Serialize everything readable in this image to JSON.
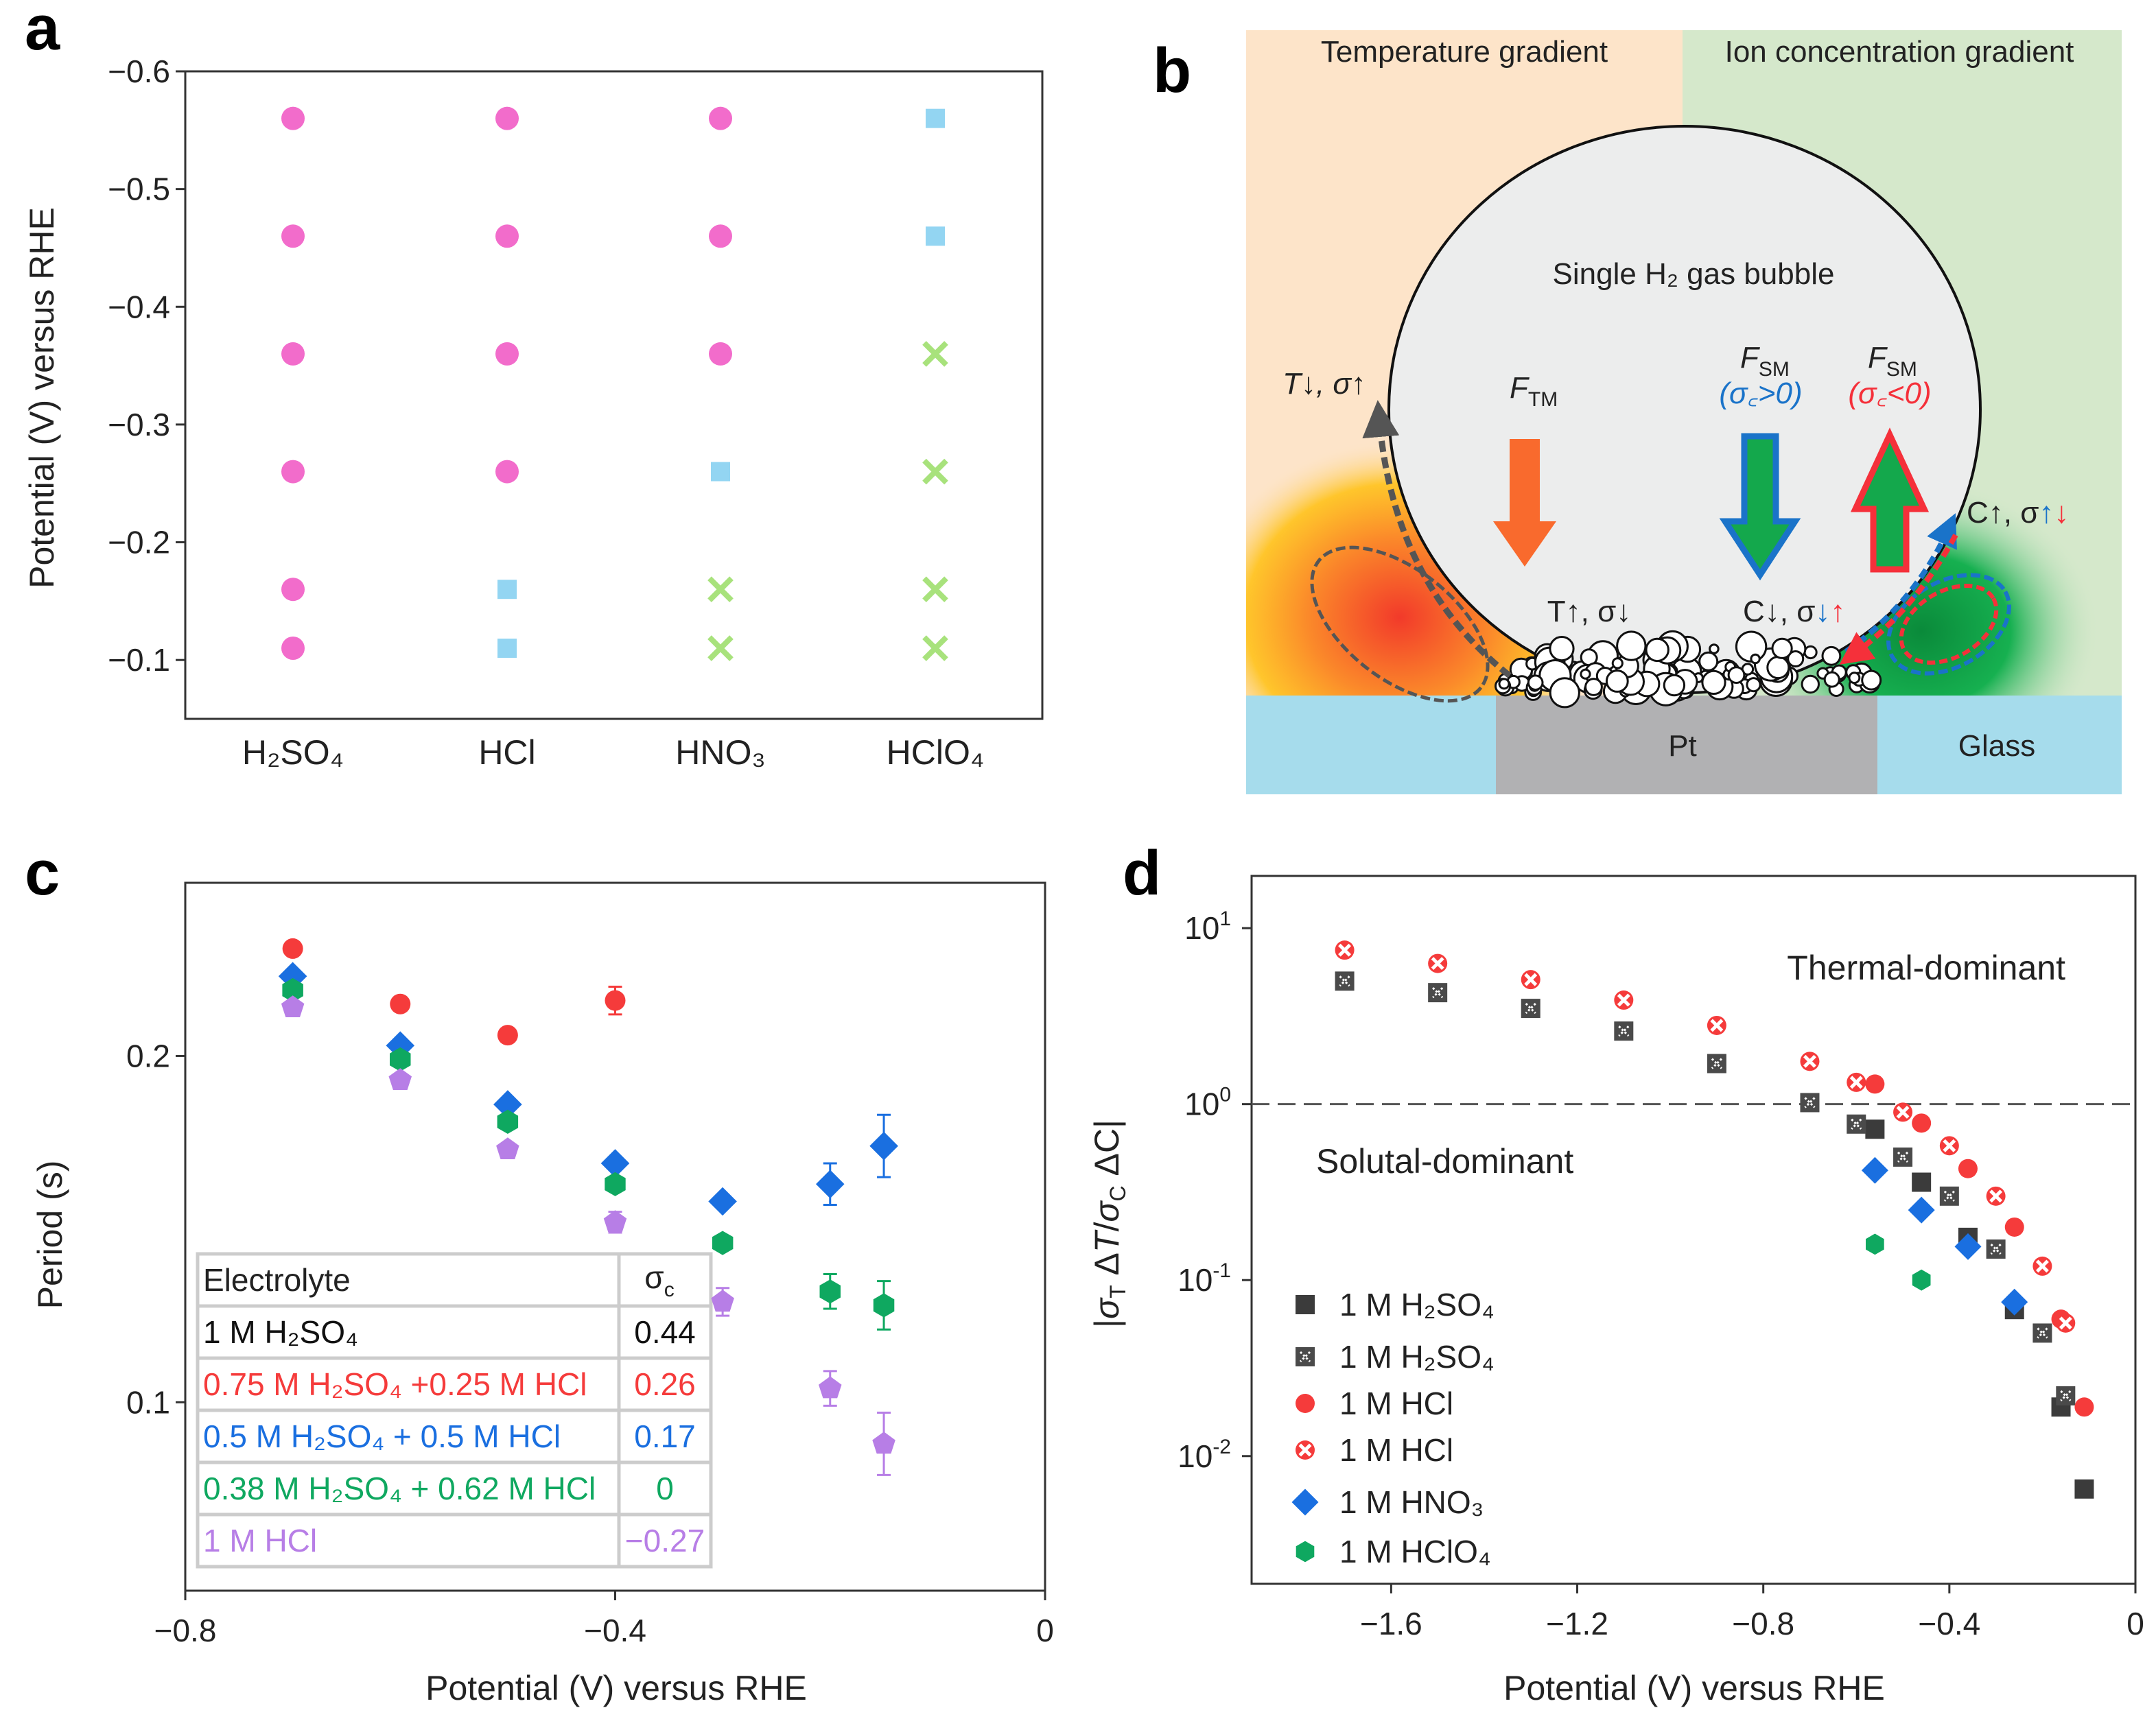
{
  "panel_labels": {
    "a": "a",
    "b": "b",
    "c": "c",
    "d": "d"
  },
  "diagram_b": {
    "temperature_gradient": "Temperature gradient",
    "ion_gradient": "Ion concentration gradient",
    "bubble_label": "Single H₂ gas bubble",
    "t_down_sigma_up": "T↓, σ↑",
    "f_tm": "F",
    "f_tm_sub": "TM",
    "f_sm_pos": "F",
    "f_sm_pos_sub": "SM",
    "sigma_c_pos": "(σ꜀>0)",
    "f_sm_neg": "F",
    "f_sm_neg_sub": "SM",
    "sigma_c_neg": "(σ꜀<0)",
    "t_up_sigma_down": "T↑, σ↓",
    "c_down": "C↓, σ",
    "c_down_b": "↓",
    "c_down_r": "↑",
    "c_up": "C↑, σ",
    "c_up_b": "↑",
    "c_up_r": "↓",
    "pt": "Pt",
    "glass": "Glass",
    "colors": {
      "temp_bg": "#fde4c9",
      "ion_bg": "#d5e8cb",
      "substrate": "#a6dcec",
      "pt": "#b1b1b3",
      "orange_arrow": "#f96a2d",
      "blue": "#1a73c9",
      "green": "#14a84c",
      "red": "#f5303a"
    }
  },
  "chart_data": [
    {
      "id": "a",
      "type": "scatter",
      "title": "",
      "xlabel": "",
      "ylabel": "Potential (V) versus RHE",
      "categories": [
        "H₂SO₄",
        "HCl",
        "HNO₃",
        "HClO₄"
      ],
      "ylim": [
        -0.6,
        -0.05
      ],
      "y_inverted": true,
      "yticks": [
        "−0.6",
        "−0.5",
        "−0.4",
        "−0.3",
        "−0.2",
        "−0.1"
      ],
      "ytick_values": [
        -0.6,
        -0.5,
        -0.4,
        -0.3,
        -0.2,
        -0.1
      ],
      "series": [
        {
          "marker": "circle",
          "color": "#f26ccb",
          "points": [
            {
              "category": 0,
              "y": -0.56
            },
            {
              "category": 0,
              "y": -0.46
            },
            {
              "category": 0,
              "y": -0.36
            },
            {
              "category": 0,
              "y": -0.26
            },
            {
              "category": 0,
              "y": -0.16
            },
            {
              "category": 0,
              "y": -0.11
            },
            {
              "category": 1,
              "y": -0.56
            },
            {
              "category": 1,
              "y": -0.46
            },
            {
              "category": 1,
              "y": -0.36
            },
            {
              "category": 1,
              "y": -0.26
            },
            {
              "category": 2,
              "y": -0.56
            },
            {
              "category": 2,
              "y": -0.46
            },
            {
              "category": 2,
              "y": -0.36
            }
          ]
        },
        {
          "marker": "square",
          "color": "#93d5f2",
          "points": [
            {
              "category": 1,
              "y": -0.16
            },
            {
              "category": 1,
              "y": -0.11
            },
            {
              "category": 2,
              "y": -0.26
            },
            {
              "category": 3,
              "y": -0.56
            },
            {
              "category": 3,
              "y": -0.46
            }
          ]
        },
        {
          "marker": "cross",
          "color": "#a8e27c",
          "points": [
            {
              "category": 2,
              "y": -0.16
            },
            {
              "category": 2,
              "y": -0.11
            },
            {
              "category": 3,
              "y": -0.36
            },
            {
              "category": 3,
              "y": -0.26
            },
            {
              "category": 3,
              "y": -0.16
            },
            {
              "category": 3,
              "y": -0.11
            }
          ]
        }
      ]
    },
    {
      "id": "c",
      "type": "scatter",
      "title": "",
      "xlabel": "Potential (V) versus RHE",
      "ylabel": "Period (s)",
      "xlim": [
        -0.8,
        0
      ],
      "ylim": [
        0.0456,
        0.25
      ],
      "xticks": [
        "−0.8",
        "−0.4",
        "0"
      ],
      "xtick_values": [
        -0.8,
        -0.4,
        0
      ],
      "yticks": [
        "0.2",
        "0.1"
      ],
      "ytick_values": [
        0.2,
        0.1
      ],
      "series": [
        {
          "name": "1 M H₂SO₄",
          "sigma_c": "0.44",
          "color": "#111111",
          "marker": "none",
          "x": [],
          "y": [],
          "err": []
        },
        {
          "name": "0.75 M H₂SO₄ +0.25 M HCl",
          "sigma_c": "0.26",
          "color": "#f53b3b",
          "marker": "circle",
          "x": [
            -0.7,
            -0.6,
            -0.5,
            -0.4
          ],
          "y": [
            0.231,
            0.215,
            0.206,
            0.216
          ],
          "err": [
            0.002,
            0.002,
            0.002,
            0.004
          ]
        },
        {
          "name": "0.5 M H₂SO₄ + 0.5 M HCl",
          "sigma_c": "0.17",
          "color": "#1a6fe0",
          "marker": "diamond",
          "x": [
            -0.7,
            -0.6,
            -0.5,
            -0.4,
            -0.3,
            -0.2,
            -0.15
          ],
          "y": [
            0.223,
            0.203,
            0.186,
            0.169,
            0.158,
            0.163,
            0.174
          ],
          "err": [
            0.002,
            0.002,
            0.002,
            0.002,
            0.002,
            0.006,
            0.009
          ]
        },
        {
          "name": "0.38 M H₂SO₄ + 0.62 M HCl",
          "sigma_c": "0",
          "color": "#0fa860",
          "marker": "hexagon",
          "x": [
            -0.7,
            -0.6,
            -0.5,
            -0.4,
            -0.3,
            -0.2,
            -0.15
          ],
          "y": [
            0.219,
            0.199,
            0.181,
            0.163,
            0.146,
            0.132,
            0.128
          ],
          "err": [
            0.002,
            0.002,
            0.002,
            0.002,
            0.002,
            0.005,
            0.007
          ]
        },
        {
          "name": "1 M HCl",
          "sigma_c": "−0.27",
          "color": "#b77ee6",
          "marker": "pentagon",
          "x": [
            -0.7,
            -0.6,
            -0.5,
            -0.4,
            -0.3,
            -0.2,
            -0.15
          ],
          "y": [
            0.214,
            0.193,
            0.173,
            0.152,
            0.129,
            0.104,
            0.088
          ],
          "err": [
            0.002,
            0.002,
            0.002,
            0.003,
            0.004,
            0.005,
            0.009
          ]
        }
      ],
      "table": {
        "header_name": "Electrolyte",
        "header_sigma": "σ",
        "header_sigma_sub": "c"
      }
    },
    {
      "id": "d",
      "type": "scatter",
      "title": "",
      "xlabel": "Potential (V) versus RHE",
      "ylabel": "|σT ΔT/σC ΔC|",
      "yscale": "log",
      "xlim": [
        -1.9,
        0
      ],
      "ylim": [
        0.00188,
        19.8
      ],
      "xticks": [
        "−1.6",
        "−1.2",
        "−0.8",
        "−0.4",
        "0"
      ],
      "xtick_values": [
        -1.6,
        -1.2,
        -0.8,
        -0.4,
        0
      ],
      "yticks": [
        {
          "base": "10",
          "exp": "1"
        },
        {
          "base": "10",
          "exp": "0"
        },
        {
          "base": "10",
          "exp": "-1"
        },
        {
          "base": "10",
          "exp": "-2"
        }
      ],
      "ytick_values": [
        10,
        1,
        0.1,
        0.01
      ],
      "reference_line": {
        "y": 1,
        "style": "dashed"
      },
      "annotations": [
        "Thermal-dominant",
        "Solutal-dominant"
      ],
      "legend_position": "bottom-left",
      "series": [
        {
          "name": "1 M H₂SO₄",
          "marker": "square",
          "color": "#3b3b3b",
          "x": [
            -0.56,
            -0.46,
            -0.36,
            -0.26,
            -0.16,
            -0.11
          ],
          "y": [
            0.72,
            0.36,
            0.175,
            0.068,
            0.019,
            0.0065
          ]
        },
        {
          "name": "1 M H₂SO₄",
          "marker": "hatched-square",
          "color": "#4a4a4a",
          "x": [
            -1.7,
            -1.5,
            -1.3,
            -1.1,
            -0.9,
            -0.7,
            -0.6,
            -0.5,
            -0.4,
            -0.3,
            -0.2,
            -0.15
          ],
          "y": [
            5.0,
            4.3,
            3.5,
            2.6,
            1.7,
            1.02,
            0.77,
            0.5,
            0.3,
            0.15,
            0.05,
            0.022
          ]
        },
        {
          "name": "1 M HCl",
          "marker": "circle",
          "color": "#f53b3b",
          "x": [
            -0.56,
            -0.46,
            -0.36,
            -0.26,
            -0.16,
            -0.11
          ],
          "y": [
            1.3,
            0.78,
            0.43,
            0.2,
            0.06,
            0.019
          ]
        },
        {
          "name": "1 M HCl",
          "marker": "hatched-circle",
          "color": "#f53b3b",
          "x": [
            -1.7,
            -1.5,
            -1.3,
            -1.1,
            -0.9,
            -0.7,
            -0.6,
            -0.5,
            -0.4,
            -0.3,
            -0.2,
            -0.15
          ],
          "y": [
            7.5,
            6.3,
            5.1,
            3.9,
            2.8,
            1.75,
            1.33,
            0.9,
            0.58,
            0.3,
            0.12,
            0.057
          ]
        },
        {
          "name": "1 M HNO₃",
          "marker": "diamond",
          "color": "#1a6fe0",
          "x": [
            -0.56,
            -0.46,
            -0.36,
            -0.26
          ],
          "y": [
            0.42,
            0.25,
            0.155,
            0.075
          ]
        },
        {
          "name": "1 M HClO₄",
          "marker": "hexagon",
          "color": "#0fa860",
          "x": [
            -0.56,
            -0.46
          ],
          "y": [
            0.16,
            0.1
          ]
        }
      ]
    }
  ]
}
